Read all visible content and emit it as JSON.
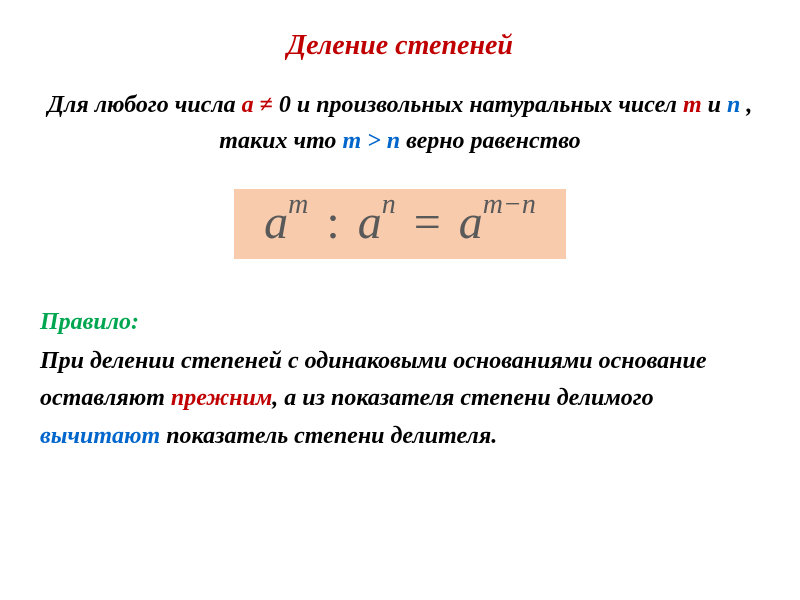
{
  "colors": {
    "title": "#c00000",
    "body_text": "#1a1a1a",
    "var_a": "#c00000",
    "neq": "#c00000",
    "var_m": "#c00000",
    "var_n": "#0066cc",
    "cond": "#0066cc",
    "formula_bg": "#f8cbad",
    "formula_text": "#595959",
    "rule_label": "#00a650",
    "emph1": "#c00000",
    "emph2": "#0066cc"
  },
  "title": "Деление степеней",
  "intro": {
    "p1a": "Для любого числа ",
    "var_a": "а",
    "sp1": " ",
    "neq": "≠",
    "sp2": " ",
    "zero": " 0",
    "p1b": " и произвольных натуральных чисел ",
    "var_m": "m",
    "p1c": " и ",
    "var_n": "n",
    "p1d": " , таких что  ",
    "cond": "m > n",
    "p1e": " верно равенство"
  },
  "formula": {
    "a1": "a",
    "m": "m",
    "colon": ":",
    "a2": "a",
    "n": "n",
    "eq": "=",
    "a3": "a",
    "mn": "m−n"
  },
  "rule": {
    "label": "Правило:",
    "t1": "При делении степеней с одинаковыми основаниями основание оставляют ",
    "emph1": "прежним",
    "t2": ", а из показателя степени делимого ",
    "emph2": "вычитают",
    "t3": " показатель степени делителя."
  }
}
